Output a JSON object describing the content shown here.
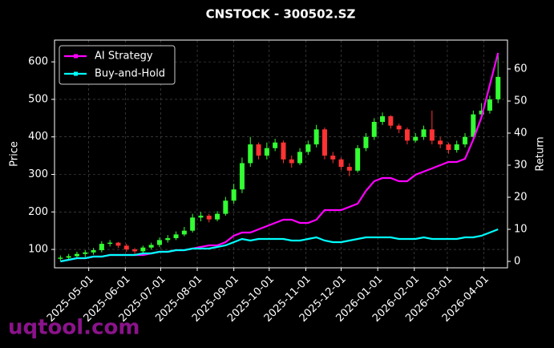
{
  "chart_data": {
    "type": "candlestick",
    "title": "CNSTOCK - 300502.SZ",
    "ylabel": "Price",
    "y2label": "Return",
    "watermark": "uqtool.com",
    "x": [
      "2025-04-07",
      "2025-04-14",
      "2025-04-21",
      "2025-04-28",
      "2025-05-05",
      "2025-05-12",
      "2025-05-19",
      "2025-05-26",
      "2025-06-02",
      "2025-06-09",
      "2025-06-16",
      "2025-06-23",
      "2025-06-30",
      "2025-07-07",
      "2025-07-14",
      "2025-07-21",
      "2025-07-28",
      "2025-08-04",
      "2025-08-11",
      "2025-08-18",
      "2025-08-25",
      "2025-09-01",
      "2025-09-08",
      "2025-09-15",
      "2025-09-22",
      "2025-09-29",
      "2025-10-06",
      "2025-10-13",
      "2025-10-20",
      "2025-10-27",
      "2025-11-03",
      "2025-11-10",
      "2025-11-17",
      "2025-11-24",
      "2025-12-01",
      "2025-12-08",
      "2025-12-15",
      "2025-12-22",
      "2025-12-29",
      "2026-01-05",
      "2026-01-12",
      "2026-01-19",
      "2026-01-26",
      "2026-02-02",
      "2026-02-09",
      "2026-02-16",
      "2026-02-23",
      "2026-03-02",
      "2026-03-09",
      "2026-03-16",
      "2026-03-23",
      "2026-03-30",
      "2026-04-06",
      "2026-04-13"
    ],
    "open": [
      75,
      78,
      82,
      88,
      92,
      98,
      115,
      118,
      110,
      100,
      95,
      105,
      112,
      125,
      130,
      140,
      150,
      185,
      190,
      180,
      195,
      230,
      260,
      330,
      380,
      350,
      370,
      385,
      340,
      330,
      360,
      380,
      420,
      350,
      340,
      320,
      310,
      370,
      400,
      440,
      455,
      430,
      420,
      390,
      400,
      420,
      390,
      380,
      365,
      380,
      400,
      460,
      470,
      500
    ],
    "high": [
      84,
      88,
      94,
      98,
      104,
      122,
      125,
      120,
      115,
      104,
      110,
      118,
      132,
      138,
      148,
      160,
      195,
      200,
      195,
      202,
      240,
      275,
      345,
      400,
      385,
      385,
      395,
      390,
      350,
      370,
      390,
      432,
      425,
      360,
      345,
      330,
      378,
      410,
      450,
      465,
      458,
      435,
      425,
      410,
      430,
      470,
      400,
      385,
      390,
      410,
      470,
      490,
      510,
      620
    ],
    "low": [
      70,
      72,
      76,
      80,
      86,
      92,
      108,
      104,
      94,
      88,
      90,
      100,
      106,
      118,
      125,
      135,
      145,
      175,
      172,
      175,
      190,
      222,
      250,
      320,
      340,
      340,
      362,
      330,
      318,
      325,
      352,
      372,
      340,
      330,
      312,
      295,
      305,
      362,
      392,
      432,
      422,
      410,
      380,
      385,
      392,
      380,
      370,
      355,
      358,
      372,
      392,
      450,
      462,
      490
    ],
    "close": [
      78,
      82,
      88,
      92,
      98,
      115,
      118,
      110,
      100,
      95,
      105,
      112,
      125,
      130,
      140,
      150,
      185,
      190,
      180,
      195,
      230,
      260,
      330,
      380,
      350,
      370,
      385,
      340,
      330,
      360,
      380,
      420,
      350,
      340,
      320,
      310,
      370,
      400,
      440,
      455,
      430,
      420,
      390,
      400,
      420,
      390,
      380,
      365,
      380,
      400,
      460,
      470,
      500,
      560
    ],
    "up_color": "#33ff33",
    "down_color": "#ff3333",
    "series": [
      {
        "name": "AI Strategy",
        "color": "#ff00ff",
        "axis": "y2",
        "values": [
          0,
          0.5,
          1,
          1,
          1.5,
          1.5,
          2,
          2,
          2,
          2,
          2,
          2.5,
          3,
          3,
          3.5,
          3.5,
          4,
          4.5,
          5,
          5,
          6,
          8,
          9,
          9,
          10,
          11,
          12,
          13,
          13,
          12,
          12,
          13,
          16,
          16,
          16,
          17,
          18,
          22,
          25,
          26,
          26,
          25,
          25,
          27,
          28,
          29,
          30,
          31,
          31,
          32,
          38,
          45,
          55,
          65
        ]
      },
      {
        "name": "Buy-and-Hold",
        "color": "#00ffff",
        "axis": "y2",
        "values": [
          0,
          0.5,
          1,
          1,
          1.5,
          1.5,
          2,
          2,
          2,
          2,
          2.5,
          2.5,
          3,
          3,
          3.5,
          3.5,
          4,
          4,
          4,
          4.5,
          5,
          6,
          7,
          6.5,
          7,
          7,
          7,
          7,
          6.5,
          6.5,
          7,
          7.5,
          6.5,
          6,
          6,
          6.5,
          7,
          7.5,
          7.5,
          7.5,
          7.5,
          7,
          7,
          7,
          7.5,
          7,
          7,
          7,
          7,
          7.5,
          7.5,
          8,
          9,
          10
        ]
      }
    ],
    "xlim": [
      "2025-04-02",
      "2026-04-21"
    ],
    "xticks": [
      "2025-05-01",
      "2025-06-01",
      "2025-07-01",
      "2025-08-01",
      "2025-09-01",
      "2025-10-01",
      "2025-11-01",
      "2025-12-01",
      "2026-01-01",
      "2026-02-01",
      "2026-03-01",
      "2026-04-01"
    ],
    "ylim": [
      51,
      658
    ],
    "yticks": [
      100,
      200,
      300,
      400,
      500,
      600
    ],
    "y2lim": [
      -2,
      69
    ],
    "y2ticks": [
      0,
      10,
      20,
      30,
      40,
      50,
      60
    ],
    "grid": true,
    "legend": "upper left"
  }
}
